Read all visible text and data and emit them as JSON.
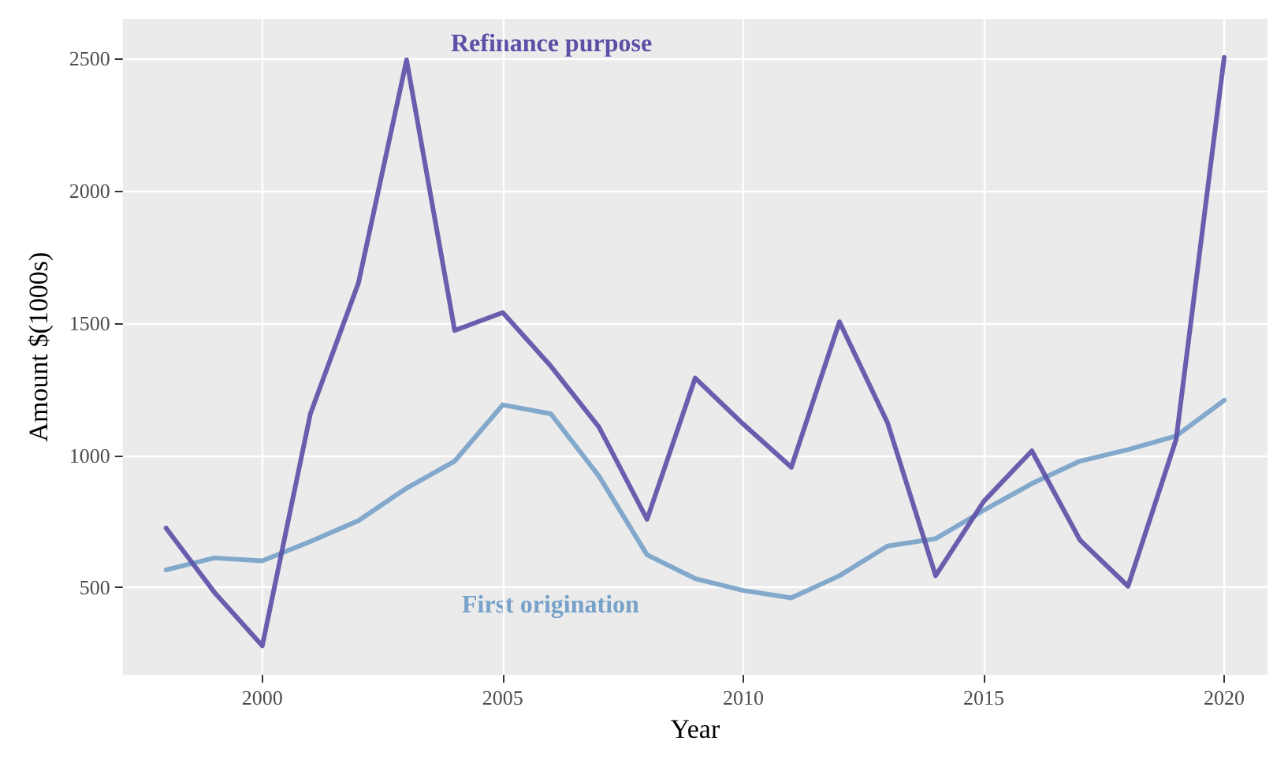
{
  "chart_data": {
    "type": "line",
    "xlabel": "Year",
    "ylabel": "Amount $(1000s)",
    "x": [
      1998,
      1999,
      2000,
      2001,
      2002,
      2003,
      2004,
      2005,
      2006,
      2007,
      2008,
      2009,
      2010,
      2011,
      2012,
      2013,
      2014,
      2015,
      2016,
      2017,
      2018,
      2019,
      2020
    ],
    "series": [
      {
        "name": "Refinance purpose",
        "color": "#5b4fa6",
        "values": [
          725,
          483,
          280,
          1157,
          1652,
          2495,
          1472,
          1540,
          1337,
          1107,
          758,
          1292,
          1118,
          955,
          1505,
          1123,
          545,
          826,
          1017,
          680,
          505,
          1060,
          2505
        ]
      },
      {
        "name": "First origination",
        "color": "#77a1c9",
        "values": [
          567,
          612,
          601,
          674,
          753,
          876,
          978,
          1191,
          1157,
          921,
          624,
          534,
          489,
          461,
          545,
          657,
          685,
          792,
          893,
          978,
          1022,
          1073,
          1208
        ]
      }
    ],
    "xlim": [
      1997.1,
      2020.9
    ],
    "xticks": [
      2000,
      2005,
      2010,
      2015,
      2020
    ],
    "ylim": [
      170,
      2650
    ],
    "yticks": [
      500,
      1000,
      1500,
      2000,
      2500
    ],
    "grid": true,
    "marker": "none",
    "line_style": "solid"
  }
}
